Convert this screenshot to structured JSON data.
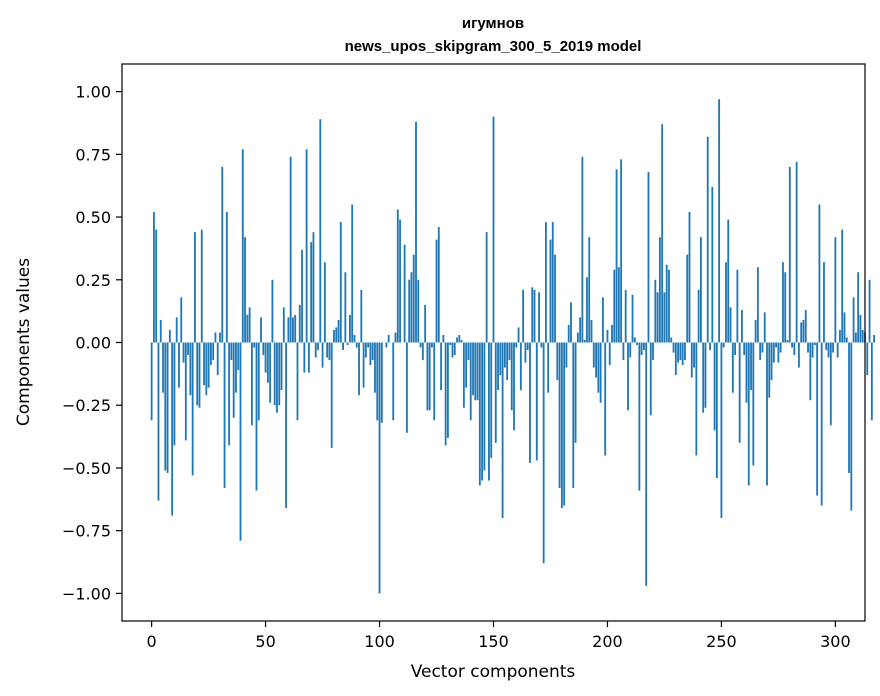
{
  "chart_data": {
    "type": "bar",
    "title": "игумнов",
    "subtitle": "news_upos_skipgram_300_5_2019 model",
    "xlabel": "Vector components",
    "ylabel": "Components values",
    "xlim": [
      -13,
      313
    ],
    "ylim": [
      -1.11,
      1.11
    ],
    "xticks": [
      0,
      50,
      100,
      150,
      200,
      250,
      300
    ],
    "yticks": [
      1.0,
      0.75,
      0.5,
      0.25,
      0.0,
      -0.25,
      -0.5,
      -0.75,
      -1.0
    ],
    "ytick_labels": [
      "1.00",
      "0.75",
      "0.50",
      "0.25",
      "0.00",
      "−0.25",
      "−0.50",
      "−0.75",
      "−1.00"
    ],
    "grid": false,
    "bar_color": "#1f77b4",
    "values": [
      -0.31,
      0.52,
      0.45,
      -0.63,
      0.09,
      -0.2,
      -0.51,
      -0.52,
      0.05,
      -0.69,
      -0.41,
      0.1,
      -0.18,
      0.18,
      -0.08,
      -0.39,
      -0.05,
      -0.21,
      -0.53,
      0.44,
      -0.25,
      -0.26,
      0.45,
      -0.17,
      -0.21,
      -0.18,
      -0.09,
      -0.07,
      0.04,
      -0.13,
      0.04,
      0.7,
      -0.58,
      0.52,
      -0.41,
      -0.07,
      -0.3,
      -0.2,
      -0.11,
      -0.79,
      0.77,
      0.42,
      0.11,
      0.14,
      -0.33,
      -0.02,
      -0.59,
      -0.31,
      0.1,
      -0.05,
      -0.12,
      -0.16,
      -0.24,
      0.25,
      -0.25,
      -0.28,
      -0.25,
      -0.19,
      0.14,
      -0.66,
      0.1,
      0.74,
      0.1,
      0.11,
      -0.31,
      0.15,
      0.37,
      -0.12,
      0.77,
      -0.12,
      0.4,
      0.44,
      -0.06,
      -0.03,
      0.89,
      -0.1,
      0.32,
      -0.06,
      -0.07,
      -0.42,
      0.05,
      0.06,
      0.09,
      0.48,
      -0.03,
      0.28,
      -0.01,
      0.11,
      0.55,
      0.03,
      -0.02,
      -0.21,
      0.21,
      -0.18,
      -0.06,
      -0.02,
      -0.09,
      -0.07,
      -0.2,
      -0.31,
      -1.0,
      -0.32,
      0.0,
      -0.02,
      0.03,
      0.0,
      -0.31,
      0.04,
      0.53,
      0.49,
      0.0,
      0.39,
      -0.36,
      0.25,
      0.28,
      0.35,
      0.88,
      0.25,
      -0.02,
      -0.07,
      0.15,
      -0.27,
      -0.27,
      -0.02,
      -0.31,
      0.41,
      0.46,
      -0.19,
      0.03,
      -0.41,
      -0.38,
      -0.01,
      -0.06,
      -0.05,
      0.02,
      0.03,
      0.01,
      -0.26,
      -0.18,
      -0.07,
      -0.31,
      -0.21,
      -0.23,
      -0.23,
      -0.57,
      -0.55,
      -0.51,
      0.44,
      -0.55,
      -0.46,
      0.9,
      -0.4,
      -0.19,
      -0.13,
      -0.7,
      -0.1,
      -0.15,
      -0.07,
      -0.27,
      -0.35,
      -0.02,
      0.06,
      -0.19,
      0.21,
      -0.08,
      -0.03,
      -0.48,
      0.22,
      0.21,
      -0.47,
      0.2,
      -0.02,
      -0.88,
      0.48,
      -0.2,
      0.41,
      0.48,
      0.35,
      -0.15,
      -0.58,
      -0.66,
      -0.65,
      -0.1,
      0.07,
      0.16,
      -0.58,
      -0.4,
      0.04,
      0.1,
      0.74,
      0.01,
      0.26,
      0.42,
      0.09,
      -0.1,
      -0.14,
      -0.2,
      -0.24,
      0.18,
      -0.45,
      0.05,
      -0.09,
      0.07,
      0.29,
      0.69,
      0.3,
      0.73,
      -0.07,
      0.21,
      -0.27,
      -0.06,
      0.19,
      0.02,
      -0.01,
      -0.59,
      -0.05,
      -0.03,
      -0.97,
      0.68,
      -0.29,
      -0.07,
      0.25,
      0.2,
      0.42,
      0.87,
      0.2,
      0.31,
      0.29,
      0.02,
      -0.04,
      -0.13,
      -0.08,
      -0.07,
      -0.09,
      -0.07,
      0.35,
      0.52,
      -0.14,
      -0.1,
      -0.45,
      0.21,
      0.42,
      -0.28,
      -0.26,
      0.82,
      -0.03,
      0.62,
      -0.35,
      -0.54,
      0.97,
      -0.7,
      -0.02,
      0.32,
      0.49,
      0.14,
      -0.2,
      -0.05,
      0.29,
      -0.4,
      0.13,
      -0.05,
      -0.24,
      -0.57,
      -0.19,
      -0.49,
      0.09,
      0.3,
      -0.07,
      -0.04,
      0.12,
      -0.57,
      -0.22,
      -0.15,
      -0.08,
      -0.02,
      -0.08,
      -0.04,
      0.32,
      0.28,
      0.01,
      0.7,
      -0.02,
      -0.05,
      0.72,
      -0.1,
      0.08,
      0.09,
      0.13,
      -0.04,
      -0.23,
      -0.06,
      -0.01,
      -0.61,
      0.55,
      -0.65,
      0.32,
      -0.03,
      -0.06,
      -0.33,
      -0.04,
      0.42,
      -0.06,
      0.05,
      0.45,
      0.12,
      0.02,
      -0.52,
      -0.67,
      0.18,
      0.04,
      0.28,
      0.11,
      0.05,
      0.04,
      -0.13,
      0.25,
      -0.31,
      0.03
    ]
  }
}
